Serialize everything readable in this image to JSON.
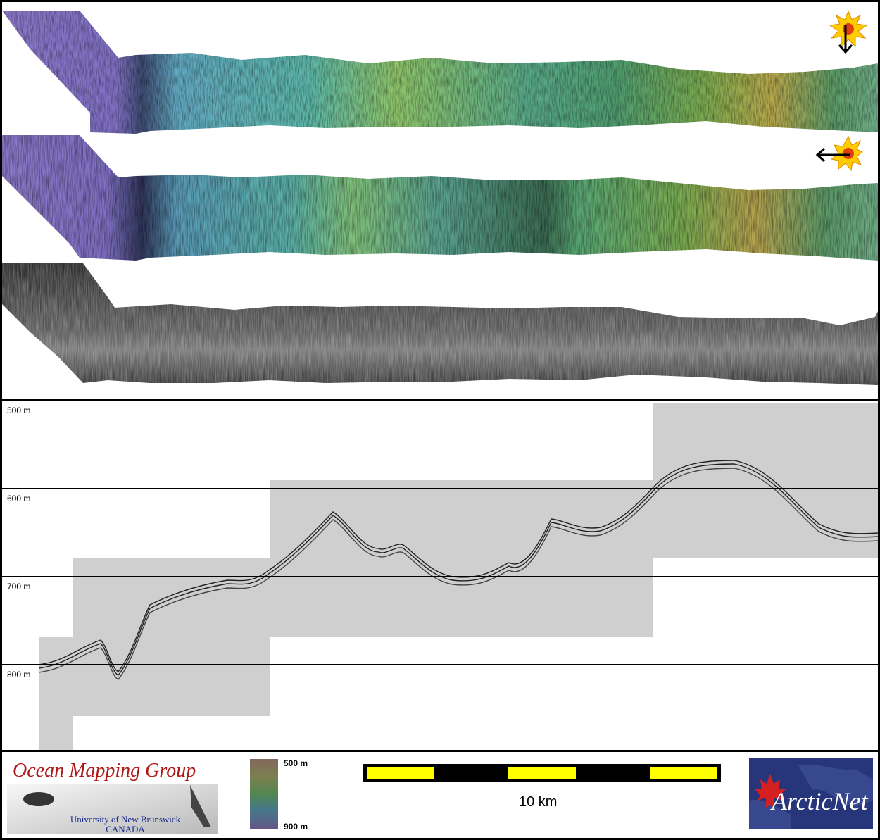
{
  "depth_labels": [
    "500 m",
    "600 m",
    "700 m",
    "800 m"
  ],
  "colorbar": {
    "top_label": "500 m",
    "bottom_label": "900 m"
  },
  "scale_bar": {
    "label": "10 km"
  },
  "logos": {
    "ocean_mapping": {
      "title": "Ocean Mapping Group",
      "subtitle_line1": "University of New Brunswick",
      "subtitle_line2": "CANADA"
    },
    "arcticnet": {
      "text": "ArcticNet"
    }
  },
  "sun_icons": [
    {
      "name": "sun-illumination-north",
      "arrow": "down"
    },
    {
      "name": "sun-illumination-east",
      "arrow": "left"
    }
  ],
  "colors": {
    "scale_yellow": "#ffff00",
    "omg_red": "#b01818",
    "arcticnet_blue": "#27357a"
  }
}
